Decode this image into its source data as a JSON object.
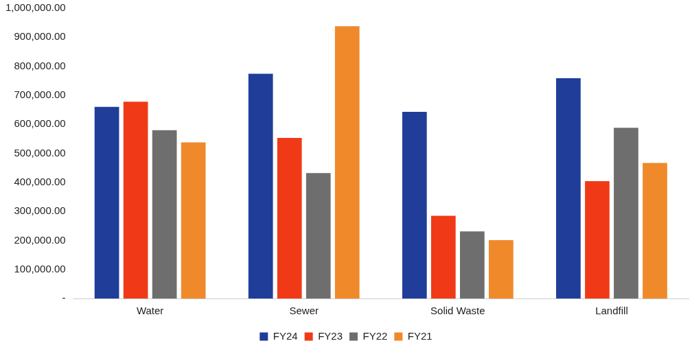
{
  "chart_data": {
    "type": "bar",
    "categories": [
      "Water",
      "Sewer",
      "Solid Waste",
      "Landfill"
    ],
    "series": [
      {
        "name": "FY24",
        "color": "#1f3d99",
        "values": [
          660000,
          774000,
          643000,
          759000
        ]
      },
      {
        "name": "FY23",
        "color": "#f03a17",
        "values": [
          678000,
          553000,
          285000,
          404000
        ]
      },
      {
        "name": "FY22",
        "color": "#6e6e6e",
        "values": [
          580000,
          432000,
          231000,
          588000
        ]
      },
      {
        "name": "FY21",
        "color": "#f0892a",
        "values": [
          538000,
          938000,
          201000,
          467000
        ]
      }
    ],
    "ylim": [
      0,
      1000000
    ],
    "yticks": [
      {
        "value": 0,
        "label": "-"
      },
      {
        "value": 100000,
        "label": "100,000.00"
      },
      {
        "value": 200000,
        "label": "200,000.00"
      },
      {
        "value": 300000,
        "label": "300,000.00"
      },
      {
        "value": 400000,
        "label": "400,000.00"
      },
      {
        "value": 500000,
        "label": "500,000.00"
      },
      {
        "value": 600000,
        "label": "600,000.00"
      },
      {
        "value": 700000,
        "label": "700,000.00"
      },
      {
        "value": 800000,
        "label": "800,000.00"
      },
      {
        "value": 900000,
        "label": "900,000.00"
      },
      {
        "value": 1000000,
        "label": "1,000,000.00"
      }
    ],
    "grid": false,
    "legend": "bottom"
  }
}
